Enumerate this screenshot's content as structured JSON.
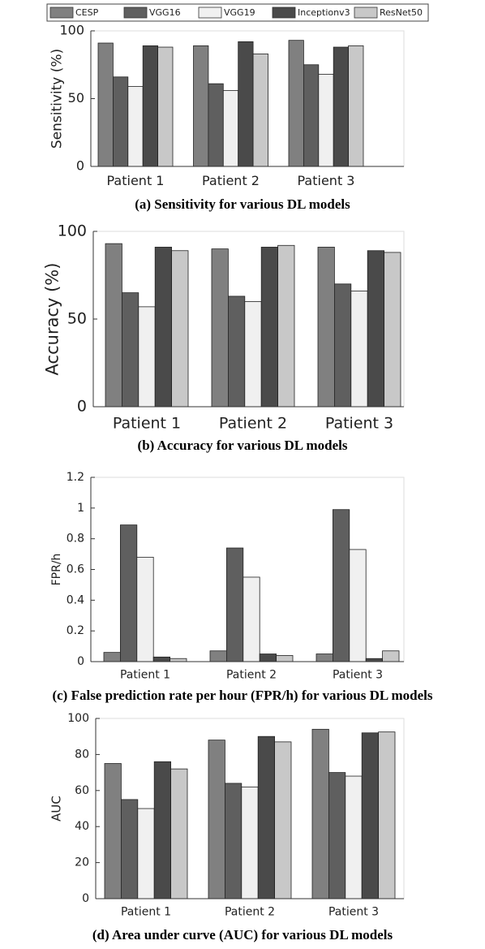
{
  "chart_data": [
    {
      "type": "bar",
      "title": "(a) Sensitivity for various DL models",
      "y_label": "Sensitivity (%)",
      "categories": [
        "Patient 1",
        "Patient 2",
        "Patient 3"
      ],
      "ylim": [
        0,
        100
      ],
      "yticks": [
        0,
        50,
        100
      ],
      "series": [
        {
          "name": "CESP",
          "color": "#808080",
          "values": [
            91,
            89,
            93
          ]
        },
        {
          "name": "VGG16",
          "color": "#5f5f5f",
          "values": [
            66,
            61,
            75
          ]
        },
        {
          "name": "VGG19",
          "color": "#f0f0f0",
          "values": [
            59,
            56,
            68
          ]
        },
        {
          "name": "Inceptionv3",
          "color": "#4a4a4a",
          "values": [
            89,
            92,
            88
          ]
        },
        {
          "name": "ResNet50",
          "color": "#c8c8c8",
          "values": [
            88,
            83,
            89
          ]
        }
      ]
    },
    {
      "type": "bar",
      "title": "(b) Accuracy for various DL models",
      "y_label": "Accuracy (%)",
      "categories": [
        "Patient 1",
        "Patient 2",
        "Patient 3"
      ],
      "ylim": [
        0,
        100
      ],
      "yticks": [
        0,
        50,
        100
      ],
      "series": [
        {
          "color": "#808080",
          "values": [
            93,
            90,
            91
          ]
        },
        {
          "color": "#5f5f5f",
          "values": [
            65,
            63,
            70
          ]
        },
        {
          "color": "#f0f0f0",
          "values": [
            57,
            60,
            66
          ]
        },
        {
          "color": "#4a4a4a",
          "values": [
            91,
            91,
            89
          ]
        },
        {
          "color": "#c8c8c8",
          "values": [
            89,
            92,
            88
          ]
        }
      ]
    },
    {
      "type": "bar",
      "title": "(c) False prediction rate per hour (FPR/h) for various DL models",
      "y_label": "FPR/h",
      "categories": [
        "Patient 1",
        "Patient 2",
        "Patient 3"
      ],
      "ylim": [
        0,
        1.2
      ],
      "yticks": [
        0,
        0.2,
        0.4,
        0.6,
        0.8,
        1,
        1.2
      ],
      "series": [
        {
          "color": "#808080",
          "values": [
            0.06,
            0.07,
            0.05
          ]
        },
        {
          "color": "#5f5f5f",
          "values": [
            0.89,
            0.74,
            0.99
          ]
        },
        {
          "color": "#f0f0f0",
          "values": [
            0.68,
            0.55,
            0.73
          ]
        },
        {
          "color": "#4a4a4a",
          "values": [
            0.03,
            0.05,
            0.02
          ]
        },
        {
          "color": "#c8c8c8",
          "values": [
            0.02,
            0.04,
            0.07
          ]
        }
      ]
    },
    {
      "type": "bar",
      "title": "(d) Area under curve (AUC)  for various DL models",
      "y_label": "AUC",
      "categories": [
        "Patient 1",
        "Patient 2",
        "Patient 3"
      ],
      "ylim": [
        0,
        100
      ],
      "yticks": [
        0,
        20,
        40,
        60,
        80,
        100
      ],
      "series": [
        {
          "color": "#808080",
          "values": [
            75,
            88,
            94
          ]
        },
        {
          "color": "#5f5f5f",
          "values": [
            55,
            64,
            70
          ]
        },
        {
          "color": "#f0f0f0",
          "values": [
            50,
            62,
            68
          ]
        },
        {
          "color": "#4a4a4a",
          "values": [
            76,
            90,
            92
          ]
        },
        {
          "color": "#c8c8c8",
          "values": [
            72,
            87,
            92.5
          ]
        }
      ]
    }
  ]
}
